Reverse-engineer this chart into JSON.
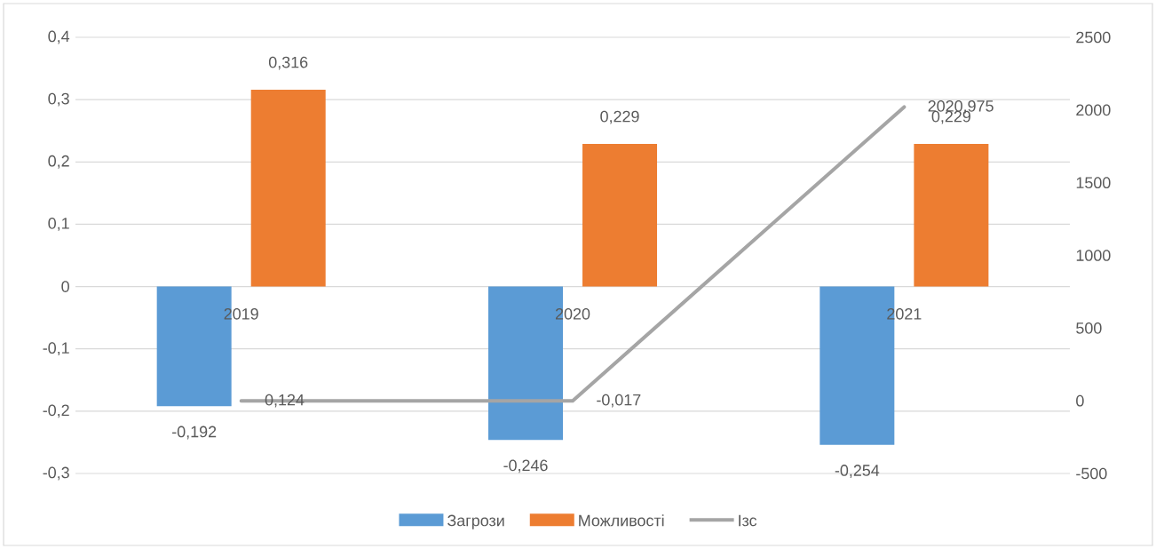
{
  "chart_data": {
    "type": "bar",
    "categories": [
      "2019",
      "2020",
      "2021"
    ],
    "series": [
      {
        "name": "Загрози",
        "color": "#5b9bd5",
        "values": [
          -0.192,
          -0.246,
          -0.254
        ],
        "value_labels": [
          "-0,192",
          "-0,246",
          "-0,254"
        ]
      },
      {
        "name": "Можливості",
        "color": "#ed7d31",
        "values": [
          0.316,
          0.229,
          0.229
        ],
        "value_labels": [
          "0,316",
          "0,229",
          "0,229"
        ]
      },
      {
        "name": "Ізс",
        "type": "line",
        "axis": "y2",
        "color": "#a5a5a5",
        "values": [
          0.124,
          -0.017,
          2020.975
        ],
        "value_labels": [
          "0,124",
          "-0,017",
          "2020,975"
        ]
      }
    ],
    "ylim": [
      -0.3,
      0.4
    ],
    "yticks": [
      {
        "value": -0.3,
        "label": "-0,3"
      },
      {
        "value": -0.2,
        "label": "-0,2"
      },
      {
        "value": -0.1,
        "label": "-0,1"
      },
      0,
      {
        "value": 0.1,
        "label": "0,1"
      },
      {
        "value": 0.2,
        "label": "0,2"
      },
      {
        "value": 0.3,
        "label": "0,3"
      },
      {
        "value": 0.4,
        "label": "0,4"
      }
    ],
    "y2lim": [
      -500,
      2500
    ],
    "y2ticks": [
      -500,
      0,
      500,
      1000,
      1500,
      2000,
      2500
    ],
    "grid": "y",
    "legend": "bottom",
    "marker": "none",
    "line_style": "solid"
  }
}
